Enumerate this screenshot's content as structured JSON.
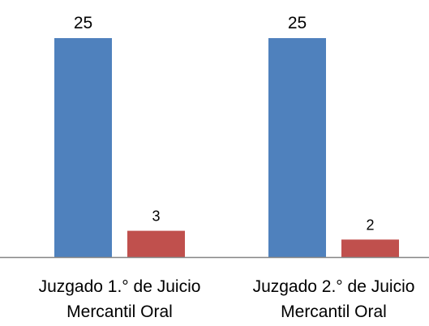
{
  "chart_data": {
    "type": "bar",
    "categories": [
      [
        "Juzgado 1.° de Juicio",
        "Mercantil Oral"
      ],
      [
        "Juzgado 2.° de Juicio",
        "Mercantil Oral"
      ]
    ],
    "series": [
      {
        "values": [
          25,
          25
        ],
        "color": "#4F81BD"
      },
      {
        "values": [
          3,
          2
        ],
        "color": "#C0504D"
      }
    ],
    "ylim": [
      0,
      25
    ],
    "grid": false,
    "legend": "none",
    "data_labels": true
  }
}
